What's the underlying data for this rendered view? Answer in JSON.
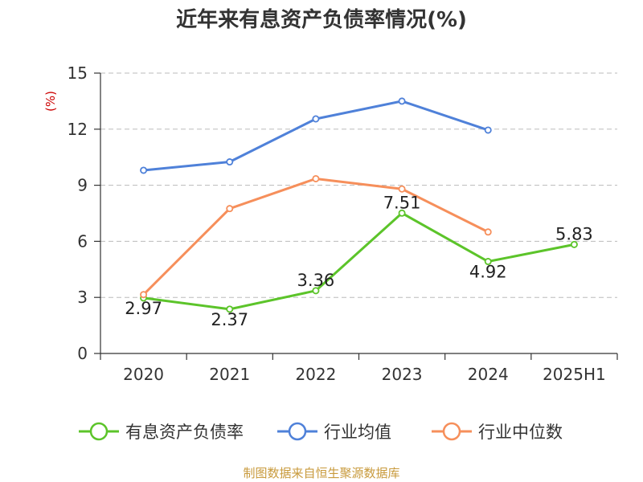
{
  "chart_data": {
    "type": "line",
    "title": "近年来有息资产负债率情况(%)",
    "ylabel": "(%)",
    "xlabel": "",
    "categories": [
      "2020",
      "2021",
      "2022",
      "2023",
      "2024",
      "2025H1"
    ],
    "yticks": [
      "0",
      "3",
      "6",
      "9",
      "12",
      "15"
    ],
    "ylim": [
      0,
      15
    ],
    "grid": true,
    "legend_position": "bottom",
    "series": [
      {
        "name": "有息资产负债率",
        "color": "#5cc42a",
        "values": [
          2.97,
          2.37,
          3.36,
          7.51,
          4.92,
          5.83
        ],
        "labels": [
          "2.97",
          "2.37",
          "3.36",
          "7.51",
          "4.92",
          "5.83"
        ]
      },
      {
        "name": "行业均值",
        "color": "#4f81d9",
        "values": [
          9.8,
          10.25,
          12.55,
          13.5,
          11.95,
          null
        ]
      },
      {
        "name": "行业中位数",
        "color": "#f68f5b",
        "values": [
          3.15,
          7.75,
          9.35,
          8.8,
          6.5,
          null
        ]
      }
    ]
  },
  "colors": {
    "ylabel": "#cc0000",
    "source": "#c89a3c",
    "axis": "#333333",
    "grid": "#bbbbbb"
  },
  "source_text": "制图数据来自恒生聚源数据库"
}
